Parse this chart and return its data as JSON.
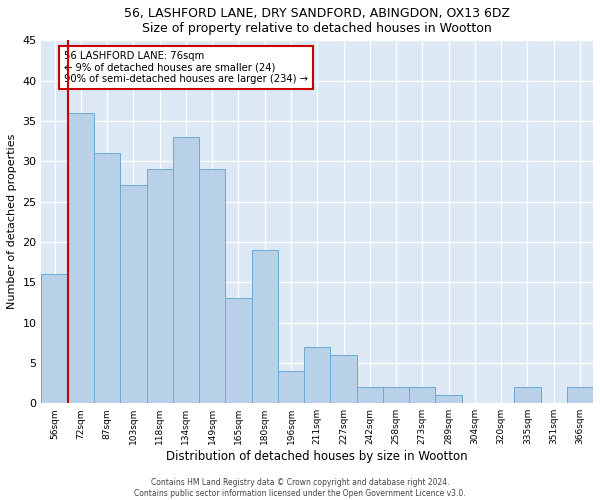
{
  "title1": "56, LASHFORD LANE, DRY SANDFORD, ABINGDON, OX13 6DZ",
  "title2": "Size of property relative to detached houses in Wootton",
  "xlabel": "Distribution of detached houses by size in Wootton",
  "ylabel": "Number of detached properties",
  "bar_labels": [
    "56sqm",
    "72sqm",
    "87sqm",
    "103sqm",
    "118sqm",
    "134sqm",
    "149sqm",
    "165sqm",
    "180sqm",
    "196sqm",
    "211sqm",
    "227sqm",
    "242sqm",
    "258sqm",
    "273sqm",
    "289sqm",
    "304sqm",
    "320sqm",
    "335sqm",
    "351sqm",
    "366sqm"
  ],
  "bar_heights": [
    16,
    36,
    31,
    27,
    29,
    33,
    29,
    13,
    19,
    4,
    7,
    6,
    2,
    2,
    2,
    1,
    0,
    0,
    2,
    0,
    2
  ],
  "bar_color": "#b8d0e8",
  "bar_edge_color": "#6aaad4",
  "background_color": "#dce9f5",
  "grid_color": "#ffffff",
  "vline_x": 0.5,
  "vline_color": "#cc0000",
  "annotation_text": "56 LASHFORD LANE: 76sqm\n← 9% of detached houses are smaller (24)\n90% of semi-detached houses are larger (234) →",
  "annotation_box_color": "#ffffff",
  "annotation_box_edge": "#cc0000",
  "ylim": [
    0,
    45
  ],
  "yticks": [
    0,
    5,
    10,
    15,
    20,
    25,
    30,
    35,
    40,
    45
  ],
  "footer1": "Contains HM Land Registry data © Crown copyright and database right 2024.",
  "footer2": "Contains public sector information licensed under the Open Government Licence v3.0."
}
